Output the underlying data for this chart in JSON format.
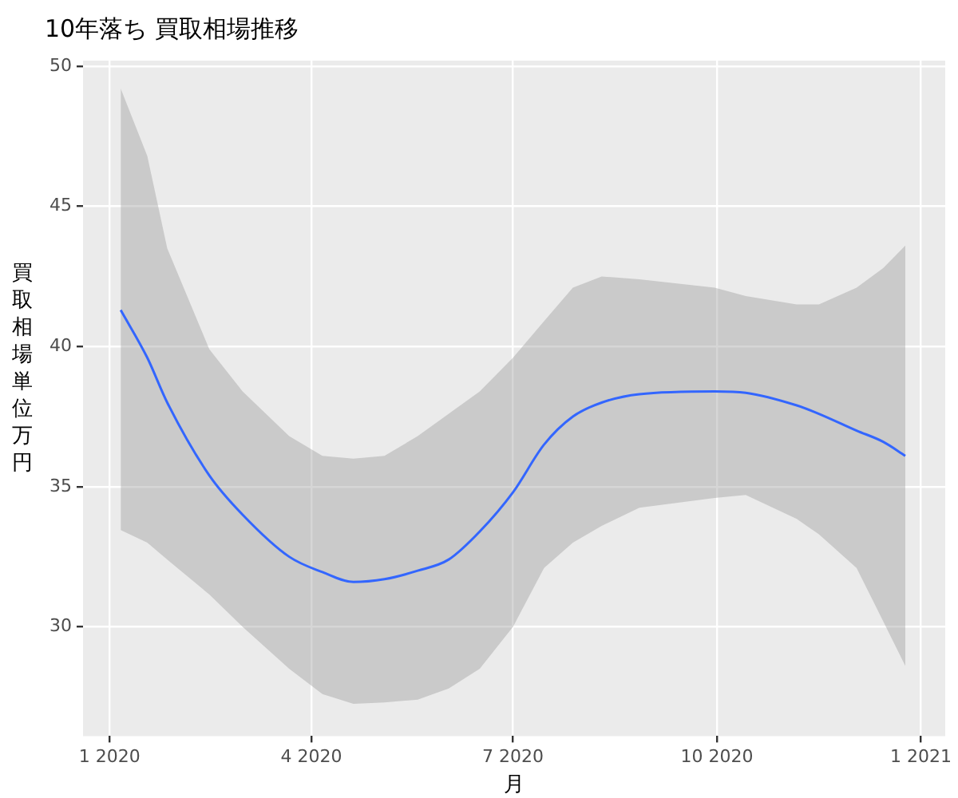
{
  "chart_data": {
    "type": "line",
    "title": "10年落ち 買取相場推移",
    "xlabel": "月",
    "ylabel": "買取相場単位万円",
    "x": [
      "2020-01-06",
      "2020-01-18",
      "2020-01-27",
      "2020-02-15",
      "2020-03-01",
      "2020-03-22",
      "2020-04-06",
      "2020-04-20",
      "2020-05-04",
      "2020-05-19",
      "2020-06-02",
      "2020-06-16",
      "2020-07-01",
      "2020-07-15",
      "2020-07-28",
      "2020-08-10",
      "2020-08-27",
      "2020-09-30",
      "2020-10-14",
      "2020-11-06",
      "2020-11-16",
      "2020-12-03",
      "2020-12-15",
      "2020-12-25"
    ],
    "series": [
      {
        "color": "#3366ff",
        "values": [
          41.3,
          39.6,
          38.0,
          35.4,
          34.0,
          32.5,
          31.95,
          31.6,
          31.7,
          32.0,
          32.4,
          33.4,
          34.8,
          36.5,
          37.5,
          38.0,
          38.3,
          38.4,
          38.35,
          37.9,
          37.6,
          37.0,
          36.6,
          36.1
        ],
        "lower": [
          33.45,
          33.0,
          32.4,
          31.15,
          30.0,
          28.5,
          27.6,
          27.25,
          27.3,
          27.4,
          27.8,
          28.5,
          30.0,
          32.1,
          33.0,
          33.6,
          34.25,
          34.6,
          34.7,
          33.85,
          33.3,
          32.1,
          30.2,
          28.6
        ],
        "upper": [
          49.2,
          46.8,
          43.5,
          39.9,
          38.4,
          36.8,
          36.1,
          36.0,
          36.1,
          36.8,
          37.6,
          38.4,
          39.6,
          40.9,
          42.1,
          42.5,
          42.4,
          42.1,
          41.8,
          41.5,
          41.5,
          42.1,
          42.8,
          43.6
        ]
      }
    ],
    "xlim": [
      "2019-12-20",
      "2021-01-12"
    ],
    "ylim": [
      26.1,
      50.2
    ],
    "xticks": [
      {
        "value": "2020-01-01",
        "label": "1 2020"
      },
      {
        "value": "2020-04-01",
        "label": "4 2020"
      },
      {
        "value": "2020-07-01",
        "label": "7 2020"
      },
      {
        "value": "2020-10-01",
        "label": "10 2020"
      },
      {
        "value": "2021-01-01",
        "label": "1 2021"
      }
    ],
    "yticks": [
      30,
      35,
      40,
      45,
      50
    ],
    "grid": true,
    "marker": "none",
    "line_style": "solid",
    "legend": false
  }
}
